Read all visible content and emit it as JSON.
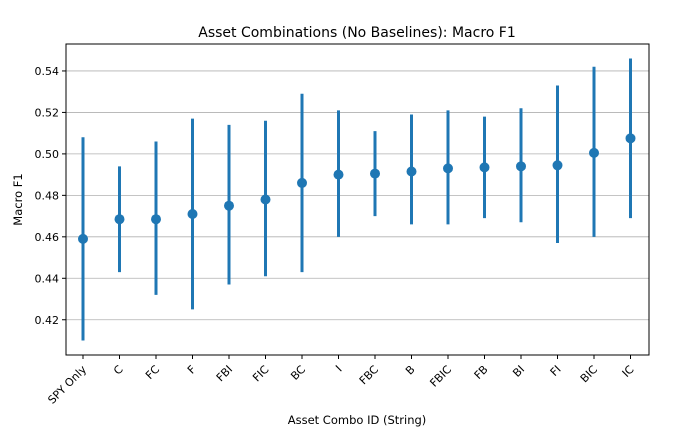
{
  "chart_data": {
    "type": "scatter",
    "title": "Asset Combinations (No Baselines): Macro F1",
    "xlabel": "Asset Combo ID (String)",
    "ylabel": "Macro F1",
    "ylim": [
      0.403,
      0.553
    ],
    "yticks": [
      "0.42",
      "0.44",
      "0.46",
      "0.48",
      "0.50",
      "0.52",
      "0.54"
    ],
    "ytick_values": [
      0.42,
      0.44,
      0.46,
      0.48,
      0.5,
      0.52,
      0.54
    ],
    "grid": "horizontal",
    "marker_color": "#1f77b4",
    "categories": [
      "SPY Only",
      "C",
      "FC",
      "F",
      "FBI",
      "FIC",
      "BC",
      "I",
      "FBC",
      "B",
      "FBIC",
      "FB",
      "BI",
      "FI",
      "BIC",
      "IC"
    ],
    "values": [
      0.459,
      0.4685,
      0.4685,
      0.471,
      0.475,
      0.478,
      0.486,
      0.49,
      0.4905,
      0.4915,
      0.493,
      0.4935,
      0.494,
      0.4945,
      0.5005,
      0.5075
    ],
    "error_low": [
      0.41,
      0.443,
      0.432,
      0.425,
      0.437,
      0.441,
      0.443,
      0.46,
      0.47,
      0.466,
      0.466,
      0.469,
      0.467,
      0.457,
      0.46,
      0.469
    ],
    "error_high": [
      0.508,
      0.494,
      0.506,
      0.517,
      0.514,
      0.516,
      0.529,
      0.521,
      0.511,
      0.519,
      0.521,
      0.518,
      0.522,
      0.533,
      0.542,
      0.546
    ]
  }
}
